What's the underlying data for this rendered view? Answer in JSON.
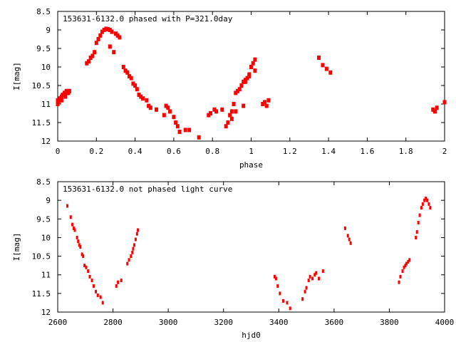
{
  "chart_data": [
    {
      "type": "scatter",
      "title": "153631-6132.0 phased with P=321.0day",
      "xlabel": "phase",
      "ylabel": "I[mag]",
      "xlim": [
        0,
        2
      ],
      "ylim": [
        12,
        8.5
      ],
      "y_inverted": true,
      "xticks": [
        "0",
        "0.2",
        "0.4",
        "0.6",
        "0.8",
        "1",
        "1.2",
        "1.4",
        "1.6",
        "1.8",
        "2"
      ],
      "yticks": [
        "8.5",
        "9",
        "9.5",
        "10",
        "10.5",
        "11",
        "11.5",
        "12"
      ],
      "grid": false,
      "marker_color": "#ff0000",
      "series": [
        {
          "x": [
            0.0,
            0.01,
            0.02,
            0.03,
            0.04,
            0.05,
            0.06,
            0.005,
            0.015,
            0.025,
            0.035,
            0.045,
            0.055,
            0.0,
            0.02,
            0.04,
            0.06,
            0.15,
            0.16,
            0.17,
            0.18,
            0.19,
            0.2,
            0.21,
            0.22,
            0.23,
            0.24,
            0.25,
            0.26,
            0.27,
            0.28,
            0.3,
            0.31,
            0.32,
            0.27,
            0.29,
            0.34,
            0.35,
            0.36,
            0.37,
            0.38,
            0.39,
            0.4,
            0.41,
            0.42,
            0.43,
            0.44,
            0.46,
            0.47,
            0.48,
            0.51,
            0.55,
            0.56,
            0.57,
            0.58,
            0.6,
            0.61,
            0.62,
            0.63,
            0.66,
            0.68,
            0.73,
            0.78,
            0.79,
            0.81,
            0.82,
            0.85,
            0.87,
            0.88,
            0.89,
            0.9,
            0.91,
            0.92,
            0.93,
            0.94,
            0.95,
            0.96,
            0.97,
            0.98,
            0.99,
            1.0,
            1.01,
            1.02,
            0.97,
            0.99,
            1.02,
            0.9,
            0.92,
            0.96,
            1.06,
            1.07,
            1.08,
            1.09,
            1.35,
            1.37,
            1.39,
            1.41,
            1.94,
            1.95,
            1.96,
            2.0
          ],
          "y": [
            10.9,
            10.85,
            10.8,
            10.75,
            10.7,
            10.7,
            10.65,
            10.95,
            10.85,
            10.75,
            10.7,
            10.65,
            10.7,
            11.0,
            10.9,
            10.8,
            10.65,
            9.9,
            9.85,
            9.75,
            9.7,
            9.6,
            9.35,
            9.25,
            9.15,
            9.05,
            9.0,
            8.97,
            8.98,
            9.0,
            9.05,
            9.1,
            9.15,
            9.2,
            9.45,
            9.6,
            10.0,
            10.1,
            10.15,
            10.25,
            10.3,
            10.45,
            10.5,
            10.6,
            10.75,
            10.8,
            10.85,
            10.9,
            11.05,
            11.1,
            11.15,
            11.3,
            11.05,
            11.1,
            11.2,
            11.35,
            11.5,
            11.6,
            11.75,
            11.7,
            11.7,
            11.9,
            11.3,
            11.25,
            11.15,
            11.2,
            11.15,
            11.6,
            11.5,
            11.3,
            11.2,
            11.0,
            10.7,
            10.65,
            10.6,
            10.5,
            10.4,
            10.35,
            10.3,
            10.2,
            10.0,
            9.9,
            9.8,
            10.4,
            10.25,
            10.1,
            11.4,
            11.2,
            11.05,
            11.0,
            10.95,
            11.05,
            10.9,
            9.75,
            9.95,
            10.05,
            10.15,
            11.15,
            11.2,
            11.1,
            10.95
          ]
        }
      ]
    },
    {
      "type": "scatter",
      "title": "153631-6132.0 not phased light curve",
      "xlabel": "hjd0",
      "ylabel": "I[mag]",
      "xlim": [
        2600,
        4000
      ],
      "ylim": [
        12,
        8.5
      ],
      "y_inverted": true,
      "xticks": [
        "2600",
        "2800",
        "3000",
        "3200",
        "3400",
        "3600",
        "3800",
        "4000"
      ],
      "yticks": [
        "8.5",
        "9",
        "9.5",
        "10",
        "10.5",
        "11",
        "11.5",
        "12"
      ],
      "grid": false,
      "marker_color": "#ff0000",
      "series": [
        {
          "x": [
            2635,
            2647,
            2653,
            2658,
            2662,
            2670,
            2674,
            2678,
            2682,
            2688,
            2692,
            2697,
            2703,
            2710,
            2716,
            2724,
            2730,
            2738,
            2745,
            2755,
            2763,
            2812,
            2818,
            2830,
            2852,
            2858,
            2865,
            2870,
            2873,
            2877,
            2882,
            2887,
            2890,
            3385,
            3390,
            3396,
            3404,
            3416,
            3430,
            3441,
            3486,
            3495,
            3500,
            3508,
            3513,
            3522,
            3530,
            3535,
            3545,
            3560,
            3640,
            3650,
            3655,
            3660,
            3835,
            3840,
            3848,
            3853,
            3858,
            3862,
            3868,
            3873,
            3896,
            3900,
            3905,
            3910,
            3916,
            3921,
            3927,
            3932,
            3937,
            3943,
            3948
          ],
          "y": [
            9.15,
            9.45,
            9.65,
            9.75,
            9.8,
            10.0,
            10.1,
            10.2,
            10.25,
            10.45,
            10.5,
            10.75,
            10.8,
            10.9,
            11.05,
            11.15,
            11.3,
            11.45,
            11.55,
            11.6,
            11.75,
            11.3,
            11.2,
            11.15,
            10.7,
            10.6,
            10.5,
            10.4,
            10.3,
            10.2,
            10.05,
            9.9,
            9.8,
            11.05,
            11.1,
            11.3,
            11.5,
            11.7,
            11.75,
            11.9,
            11.65,
            11.45,
            11.35,
            11.15,
            11.05,
            11.1,
            11.0,
            10.95,
            11.1,
            10.9,
            9.75,
            9.95,
            10.05,
            10.15,
            11.2,
            11.05,
            10.9,
            10.8,
            10.75,
            10.7,
            10.65,
            10.6,
            10.0,
            9.85,
            9.6,
            9.4,
            9.2,
            9.1,
            9.0,
            8.95,
            9.0,
            9.1,
            9.2
          ]
        }
      ]
    }
  ]
}
